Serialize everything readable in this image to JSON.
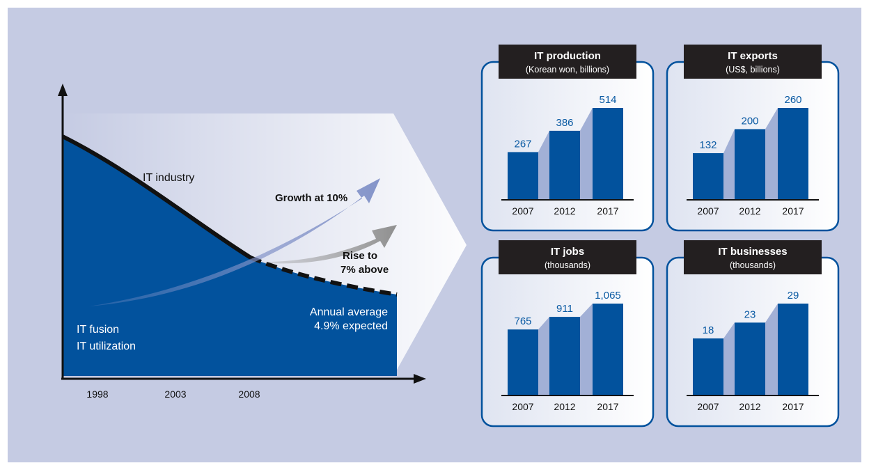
{
  "colors": {
    "background": "#c5cbe3",
    "navy": "#02529d",
    "value_blue": "#0a5aa3",
    "bar_shadow": "#a2b0d6",
    "panel_border": "#02529d",
    "title_box": "#231f20",
    "growth_arrow": "#8494c9",
    "rise_arrow": "#8f8f8f"
  },
  "main_chart": {
    "x_ticks": [
      "1998",
      "2003",
      "2008"
    ],
    "label_it_industry": "IT industry",
    "label_it_fusion": "IT fusion",
    "label_it_utilization": "IT utilization",
    "growth_label": "Growth at 10%",
    "rise_label_line1": "Rise to",
    "rise_label_line2": "7% above",
    "annual_line1": "Annual average",
    "annual_line2": "4.9% expected"
  },
  "chart_data": [
    {
      "type": "bar",
      "title": "IT production",
      "subtitle": "(Korean won, billions)",
      "categories": [
        "2007",
        "2012",
        "2017"
      ],
      "values": [
        267,
        386,
        514
      ],
      "value_labels": [
        "267",
        "386",
        "514"
      ]
    },
    {
      "type": "bar",
      "title": "IT exports",
      "subtitle": "(US$, billions)",
      "categories": [
        "2007",
        "2012",
        "2017"
      ],
      "values": [
        132,
        200,
        260
      ],
      "value_labels": [
        "132",
        "200",
        "260"
      ]
    },
    {
      "type": "bar",
      "title": "IT jobs",
      "subtitle": "(thousands)",
      "categories": [
        "2007",
        "2012",
        "2017"
      ],
      "values": [
        765,
        911,
        1065
      ],
      "value_labels": [
        "765",
        "911",
        "1,065"
      ]
    },
    {
      "type": "bar",
      "title": "IT businesses",
      "subtitle": "(thousands)",
      "categories": [
        "2007",
        "2012",
        "2017"
      ],
      "values": [
        18,
        23,
        29
      ],
      "value_labels": [
        "18",
        "23",
        "29"
      ]
    }
  ]
}
